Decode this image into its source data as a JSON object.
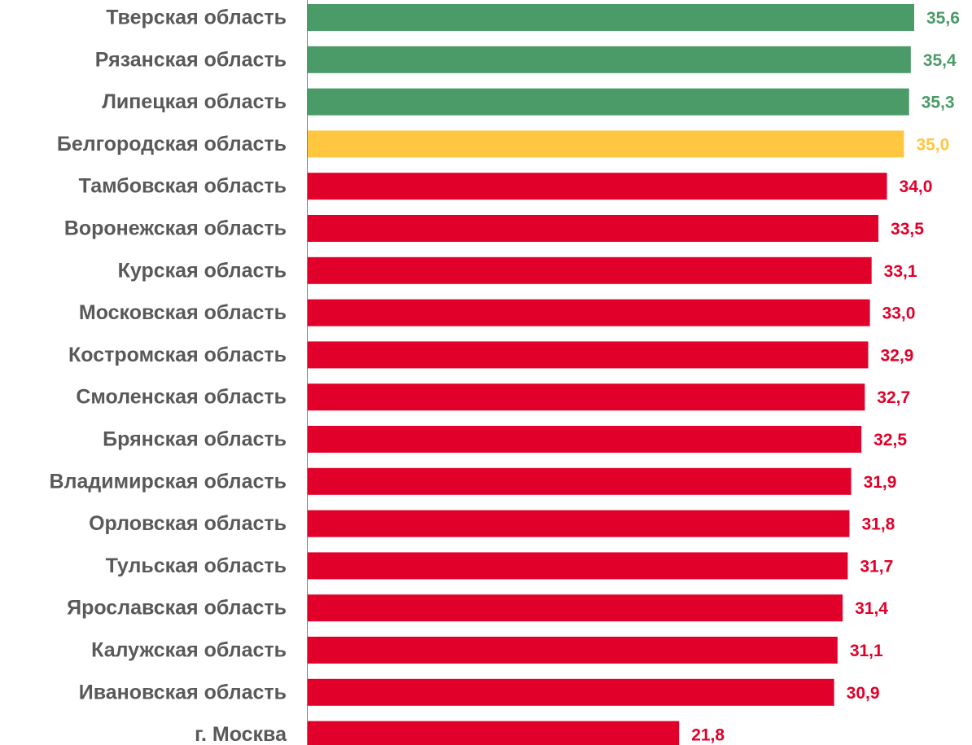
{
  "colors": {
    "above_threshold": "#4a9b67",
    "at_threshold": "#ffc740",
    "below_threshold": "#e1002a",
    "axis": "#7f7f7f",
    "category_text": "#595959"
  },
  "chart_data": {
    "type": "bar",
    "orientation": "horizontal",
    "categories": [
      "Тверская область",
      "Рязанская область",
      "Липецкая область",
      "Белгородская область",
      "Тамбовская область",
      "Воронежская область",
      "Курская область",
      "Московская область",
      "Костромская область",
      "Смоленская область",
      "Брянская область",
      "Владимирская область",
      "Орловская область",
      "Тульская область",
      "Ярославская область",
      "Калужская область",
      "Ивановская область",
      "г. Москва"
    ],
    "values": [
      35.6,
      35.4,
      35.3,
      35.0,
      34.0,
      33.5,
      33.1,
      33.0,
      32.9,
      32.7,
      32.5,
      31.9,
      31.8,
      31.7,
      31.4,
      31.1,
      30.9,
      21.8
    ],
    "value_labels": [
      "35,6",
      "35,4",
      "35,3",
      "35,0",
      "34,0",
      "33,5",
      "33,1",
      "33,0",
      "32,9",
      "32,7",
      "32,5",
      "31,9",
      "31,8",
      "31,7",
      "31,4",
      "31,1",
      "30,9",
      "21,8"
    ],
    "color_groups": [
      "above_threshold",
      "above_threshold",
      "above_threshold",
      "at_threshold",
      "below_threshold",
      "below_threshold",
      "below_threshold",
      "below_threshold",
      "below_threshold",
      "below_threshold",
      "below_threshold",
      "below_threshold",
      "below_threshold",
      "below_threshold",
      "below_threshold",
      "below_threshold",
      "below_threshold",
      "below_threshold"
    ],
    "title": "",
    "xlabel": "",
    "ylabel": "",
    "xlim": [
      0,
      35.6
    ],
    "grid": false,
    "legend": "none"
  }
}
